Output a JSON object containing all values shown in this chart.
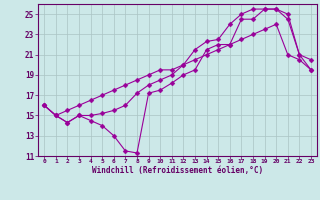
{
  "xlabel": "Windchill (Refroidissement éolien,°C)",
  "bg_color": "#cce8e8",
  "grid_color": "#aac4c4",
  "line_color": "#990099",
  "xlim": [
    -0.5,
    23.5
  ],
  "ylim": [
    11,
    26
  ],
  "yticks": [
    11,
    13,
    15,
    17,
    19,
    21,
    23,
    25
  ],
  "xticks": [
    0,
    1,
    2,
    3,
    4,
    5,
    6,
    7,
    8,
    9,
    10,
    11,
    12,
    13,
    14,
    15,
    16,
    17,
    18,
    19,
    20,
    21,
    22,
    23
  ],
  "line1_x": [
    0,
    1,
    2,
    3,
    4,
    5,
    6,
    7,
    8,
    9,
    10,
    11,
    12,
    13,
    14,
    15,
    16,
    17,
    18,
    19,
    20,
    21,
    22,
    23
  ],
  "line1_y": [
    16.0,
    15.0,
    14.3,
    15.0,
    14.5,
    14.0,
    13.0,
    11.5,
    11.3,
    17.2,
    17.5,
    18.2,
    19.0,
    19.5,
    21.5,
    22.0,
    22.0,
    24.5,
    24.5,
    25.5,
    25.5,
    24.5,
    21.0,
    20.5
  ],
  "line2_x": [
    0,
    1,
    2,
    3,
    4,
    5,
    6,
    7,
    8,
    9,
    10,
    11,
    12,
    13,
    14,
    15,
    16,
    17,
    18,
    19,
    20,
    21,
    22,
    23
  ],
  "line2_y": [
    16.0,
    15.0,
    14.3,
    15.0,
    15.0,
    15.2,
    15.5,
    16.0,
    17.2,
    18.0,
    18.5,
    19.0,
    20.0,
    21.5,
    22.3,
    22.5,
    24.0,
    25.0,
    25.5,
    25.5,
    25.5,
    25.0,
    21.0,
    19.5
  ],
  "line3_x": [
    0,
    1,
    2,
    3,
    4,
    5,
    6,
    7,
    8,
    9,
    10,
    11,
    12,
    13,
    14,
    15,
    16,
    17,
    18,
    19,
    20,
    21,
    22,
    23
  ],
  "line3_y": [
    16.0,
    15.0,
    15.5,
    16.0,
    16.5,
    17.0,
    17.5,
    18.0,
    18.5,
    19.0,
    19.5,
    19.5,
    20.0,
    20.5,
    21.0,
    21.5,
    22.0,
    22.5,
    23.0,
    23.5,
    24.0,
    21.0,
    20.5,
    19.5
  ]
}
